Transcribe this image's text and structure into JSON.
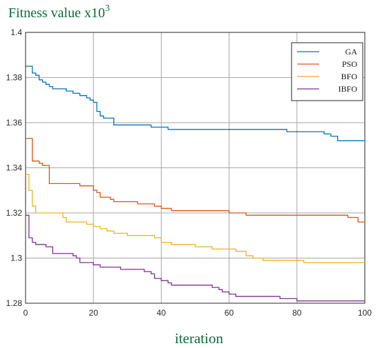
{
  "chart_data": {
    "type": "line",
    "title": "",
    "ylabel": "Fitness value x10",
    "ylabel_exponent": "3",
    "xlabel": "iteration",
    "xlim": [
      0,
      100
    ],
    "ylim": [
      1.28,
      1.4
    ],
    "xticks": [
      "0",
      "20",
      "40",
      "60",
      "80",
      "100"
    ],
    "yticks": [
      "1.28",
      "1.3",
      "1.32",
      "1.34",
      "1.36",
      "1.38",
      "1.4"
    ],
    "grid": true,
    "legend_position": "top-right",
    "series": [
      {
        "name": "GA",
        "color": "#0072BD",
        "x": [
          0,
          1,
          2,
          3,
          4,
          5,
          6,
          7,
          8,
          10,
          12,
          14,
          16,
          18,
          19,
          20,
          21,
          22,
          23,
          24,
          26,
          27,
          30,
          35,
          37,
          40,
          42,
          45,
          50,
          55,
          60,
          62,
          65,
          70,
          75,
          77,
          80,
          85,
          88,
          90,
          92,
          95,
          98,
          100
        ],
        "y": [
          1.385,
          1.385,
          1.382,
          1.381,
          1.379,
          1.378,
          1.377,
          1.376,
          1.375,
          1.375,
          1.374,
          1.373,
          1.372,
          1.371,
          1.37,
          1.369,
          1.365,
          1.363,
          1.362,
          1.362,
          1.359,
          1.359,
          1.359,
          1.359,
          1.358,
          1.358,
          1.357,
          1.357,
          1.357,
          1.357,
          1.357,
          1.357,
          1.357,
          1.357,
          1.357,
          1.356,
          1.356,
          1.356,
          1.355,
          1.354,
          1.352,
          1.352,
          1.352,
          1.352
        ]
      },
      {
        "name": "PSO",
        "color": "#D95319",
        "x": [
          0,
          1,
          2,
          3,
          4,
          5,
          6,
          7,
          8,
          10,
          12,
          14,
          16,
          18,
          20,
          21,
          22,
          23,
          25,
          26,
          28,
          30,
          32,
          33,
          35,
          38,
          40,
          42,
          43,
          45,
          50,
          55,
          60,
          62,
          65,
          70,
          75,
          80,
          85,
          90,
          95,
          98,
          100
        ],
        "y": [
          1.353,
          1.353,
          1.343,
          1.343,
          1.342,
          1.341,
          1.341,
          1.333,
          1.333,
          1.333,
          1.333,
          1.333,
          1.332,
          1.332,
          1.33,
          1.329,
          1.327,
          1.327,
          1.326,
          1.325,
          1.325,
          1.325,
          1.325,
          1.324,
          1.324,
          1.323,
          1.322,
          1.322,
          1.321,
          1.321,
          1.321,
          1.321,
          1.32,
          1.32,
          1.319,
          1.319,
          1.319,
          1.319,
          1.319,
          1.319,
          1.318,
          1.316,
          1.316
        ]
      },
      {
        "name": "BFO",
        "color": "#EDB120",
        "x": [
          0,
          1,
          2,
          3,
          5,
          8,
          10,
          11,
          12,
          13,
          15,
          18,
          20,
          22,
          24,
          26,
          28,
          30,
          32,
          35,
          38,
          40,
          41,
          43,
          45,
          48,
          50,
          52,
          55,
          57,
          60,
          62,
          63,
          65,
          67,
          70,
          75,
          80,
          82,
          85,
          90,
          95,
          100
        ],
        "y": [
          1.337,
          1.33,
          1.323,
          1.32,
          1.32,
          1.32,
          1.32,
          1.318,
          1.316,
          1.316,
          1.316,
          1.315,
          1.314,
          1.313,
          1.312,
          1.311,
          1.311,
          1.31,
          1.31,
          1.31,
          1.309,
          1.307,
          1.307,
          1.306,
          1.306,
          1.306,
          1.305,
          1.305,
          1.304,
          1.304,
          1.304,
          1.303,
          1.303,
          1.301,
          1.3,
          1.299,
          1.299,
          1.299,
          1.298,
          1.298,
          1.298,
          1.298,
          1.298
        ]
      },
      {
        "name": "IBFO",
        "color": "#7E2F8E",
        "x": [
          0,
          1,
          2,
          3,
          4,
          5,
          6,
          7,
          8,
          10,
          12,
          14,
          15,
          16,
          18,
          20,
          22,
          25,
          28,
          30,
          32,
          35,
          37,
          38,
          40,
          42,
          43,
          45,
          50,
          55,
          57,
          58,
          60,
          62,
          65,
          70,
          75,
          77,
          80,
          85,
          90,
          95,
          100
        ],
        "y": [
          1.319,
          1.309,
          1.307,
          1.306,
          1.306,
          1.306,
          1.305,
          1.305,
          1.302,
          1.302,
          1.302,
          1.301,
          1.3,
          1.298,
          1.298,
          1.297,
          1.296,
          1.296,
          1.295,
          1.295,
          1.295,
          1.294,
          1.293,
          1.291,
          1.29,
          1.289,
          1.288,
          1.288,
          1.288,
          1.287,
          1.286,
          1.285,
          1.284,
          1.283,
          1.283,
          1.283,
          1.282,
          1.282,
          1.281,
          1.281,
          1.281,
          1.281,
          1.281
        ]
      }
    ]
  }
}
